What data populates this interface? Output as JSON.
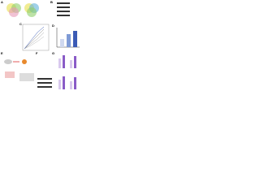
{
  "panels": [
    "A",
    "B",
    "C",
    "D",
    "E",
    "F",
    "G"
  ]
}
